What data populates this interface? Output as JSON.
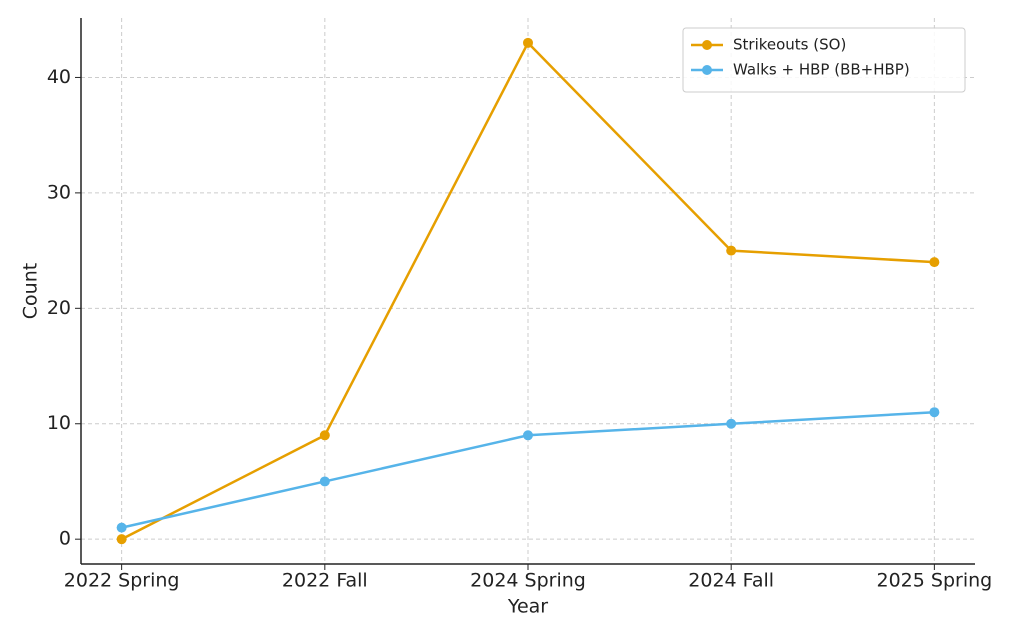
{
  "chart_data": {
    "type": "line",
    "x_label": "Year",
    "y_label": "Count",
    "categories": [
      "2022 Spring",
      "2022 Fall",
      "2024 Spring",
      "2024 Fall",
      "2025 Spring"
    ],
    "series": [
      {
        "name": "Strikeouts (SO)",
        "color": "#e69f00",
        "values": [
          0,
          9,
          43,
          25,
          24
        ]
      },
      {
        "name": "Walks + HBP (BB+HBP)",
        "color": "#56b4e9",
        "values": [
          1,
          5,
          9,
          10,
          11
        ]
      }
    ],
    "ylim": [
      -2.15,
      45.15
    ],
    "yticks": [
      0,
      10,
      20,
      30,
      40
    ],
    "grid": true,
    "legend": "upper right"
  }
}
